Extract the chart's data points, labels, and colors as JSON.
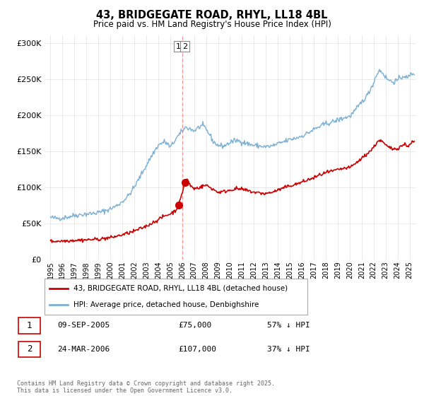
{
  "title": "43, BRIDGEGATE ROAD, RHYL, LL18 4BL",
  "subtitle": "Price paid vs. HM Land Registry's House Price Index (HPI)",
  "ylim": [
    0,
    310000
  ],
  "yticks": [
    0,
    50000,
    100000,
    150000,
    200000,
    250000,
    300000
  ],
  "hpi_color": "#7BAFD4",
  "price_color": "#CC0000",
  "vline_color": "#FF8888",
  "background_color": "#ffffff",
  "grid_color": "#e0e0e0",
  "legend_label_price": "43, BRIDGEGATE ROAD, RHYL, LL18 4BL (detached house)",
  "legend_label_hpi": "HPI: Average price, detached house, Denbighshire",
  "transaction1_label": "1",
  "transaction1_date": "09-SEP-2005",
  "transaction1_price": "£75,000",
  "transaction1_hpi": "57% ↓ HPI",
  "transaction2_label": "2",
  "transaction2_date": "24-MAR-2006",
  "transaction2_price": "£107,000",
  "transaction2_hpi": "37% ↓ HPI",
  "footnote": "Contains HM Land Registry data © Crown copyright and database right 2025.\nThis data is licensed under the Open Government Licence v3.0.",
  "point1_year": 2005.69,
  "point1_value": 75000,
  "point2_year": 2006.23,
  "point2_value": 107000,
  "vline_year": 2006.0,
  "xlim_left": 1994.5,
  "xlim_right": 2025.5
}
